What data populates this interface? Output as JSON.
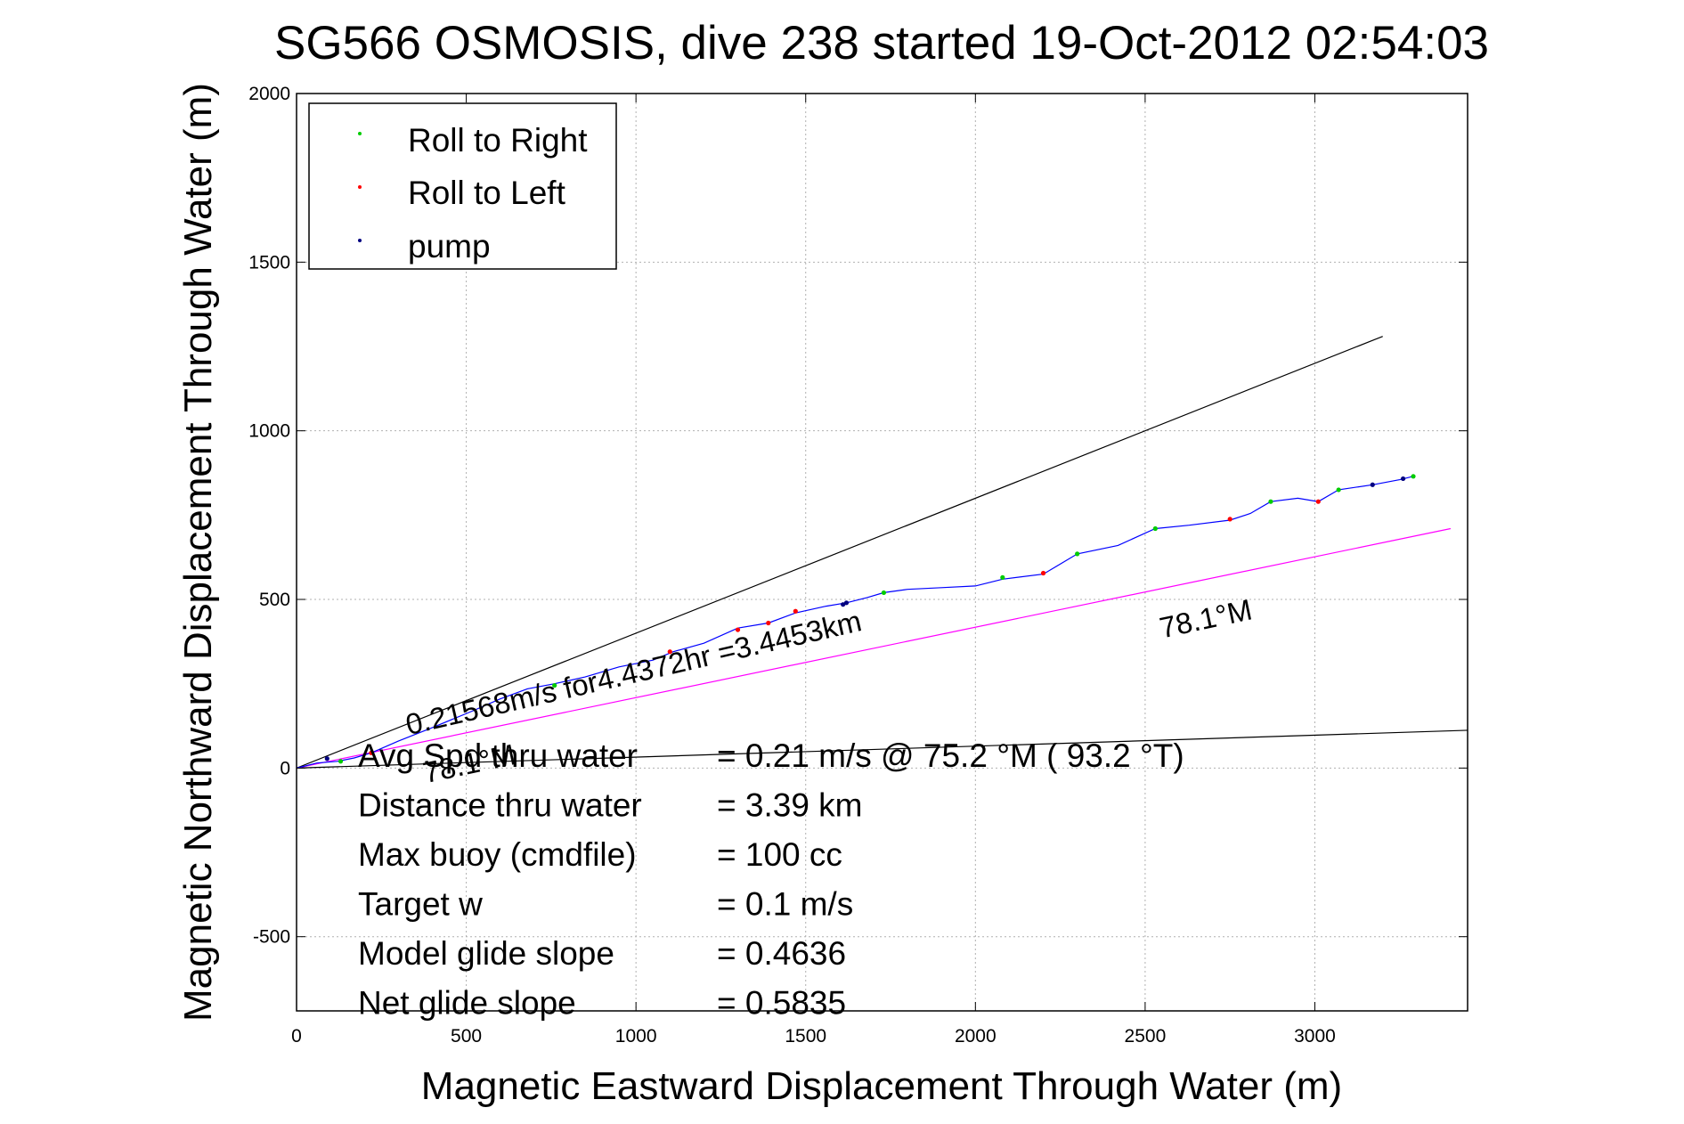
{
  "chart_data": {
    "type": "line",
    "title": "SG566 OSMOSIS, dive 238 started 19-Oct-2012 02:54:03",
    "xlabel": "Magnetic Eastward Displacement Through Water (m)",
    "ylabel": "Magnetic Northward Displacement Through Water (m)",
    "xlim": [
      0,
      3450
    ],
    "ylim": [
      -720,
      2000
    ],
    "xticks": [
      0,
      500,
      1000,
      1500,
      2000,
      2500,
      3000
    ],
    "yticks": [
      -500,
      0,
      500,
      1000,
      1500,
      2000
    ],
    "xtick_labels": [
      "0",
      "500",
      "1000",
      "1500",
      "2000",
      "2500",
      "3000"
    ],
    "ytick_labels": [
      "-500",
      "0",
      "500",
      "1000",
      "1500",
      "2000"
    ],
    "grid": true,
    "legend_position": "top-left",
    "legend": [
      {
        "label": "Roll to Right",
        "color": "#00cc00"
      },
      {
        "label": "Roll to Left",
        "color": "#ff0000"
      },
      {
        "label": "pump",
        "color": "#000080"
      }
    ],
    "track": {
      "color": "#0000ff",
      "x": [
        0,
        60,
        120,
        170,
        220,
        300,
        400,
        520,
        600,
        680,
        760,
        850,
        950,
        1050,
        1110,
        1200,
        1300,
        1390,
        1470,
        1560,
        1620,
        1680,
        1730,
        1800,
        1900,
        2000,
        2080,
        2200,
        2300,
        2420,
        2530,
        2630,
        2750,
        2810,
        2870,
        2950,
        3010,
        3070,
        3170,
        3250,
        3290
      ],
      "y": [
        0,
        15,
        20,
        30,
        45,
        80,
        120,
        170,
        205,
        235,
        250,
        270,
        300,
        320,
        345,
        370,
        415,
        430,
        460,
        480,
        490,
        505,
        520,
        530,
        535,
        540,
        560,
        575,
        635,
        660,
        710,
        720,
        735,
        755,
        790,
        800,
        790,
        825,
        840,
        855,
        865
      ]
    },
    "roll_right_points": {
      "x": [
        130,
        760,
        1730,
        2080,
        2300,
        2530,
        2870,
        3070,
        3290
      ],
      "y": [
        20,
        245,
        520,
        565,
        635,
        710,
        790,
        825,
        865
      ]
    },
    "roll_left_points": {
      "x": [
        220,
        1100,
        1300,
        1390,
        1470,
        2200,
        2750,
        3010
      ],
      "y": [
        45,
        345,
        410,
        430,
        465,
        578,
        738,
        790
      ]
    },
    "pump_points": {
      "x": [
        90,
        1610,
        1620,
        3170,
        3260
      ],
      "y": [
        28,
        485,
        490,
        840,
        858
      ]
    },
    "reference_lines": [
      {
        "name": "upper",
        "color": "#000000",
        "x": [
          0,
          3200
        ],
        "y": [
          0,
          1280
        ]
      },
      {
        "name": "lower",
        "color": "#000000",
        "x": [
          0,
          3450
        ],
        "y": [
          0,
          112
        ]
      },
      {
        "name": "magenta",
        "color": "#ff00ff",
        "x": [
          0,
          3400
        ],
        "y": [
          0,
          710
        ]
      }
    ],
    "annotations": [
      {
        "text": "0.21568m/s for4.4372hr =3.4453km",
        "x": 330,
        "y": 98,
        "rotation_deg": -13
      },
      {
        "text": "78.1°M",
        "x": 2550,
        "y": 385,
        "rotation_deg": -12
      },
      {
        "text": "78.1°M",
        "x": 380,
        "y": -45,
        "rotation_deg": -12
      }
    ],
    "stats": [
      {
        "label": "Avg Spd thru water",
        "value": "=  0.21 m/s @  75.2 °M ( 93.2 °T)"
      },
      {
        "label": "Distance thru water",
        "value": "=  3.39 km"
      },
      {
        "label": "Max buoy (cmdfile)",
        "value": "= 100 cc"
      },
      {
        "label": "Target w",
        "value": "= 0.1 m/s"
      },
      {
        "label": "Model glide slope",
        "value": "= 0.4636"
      },
      {
        "label": "Net glide slope",
        "value": "= 0.5835"
      }
    ]
  }
}
